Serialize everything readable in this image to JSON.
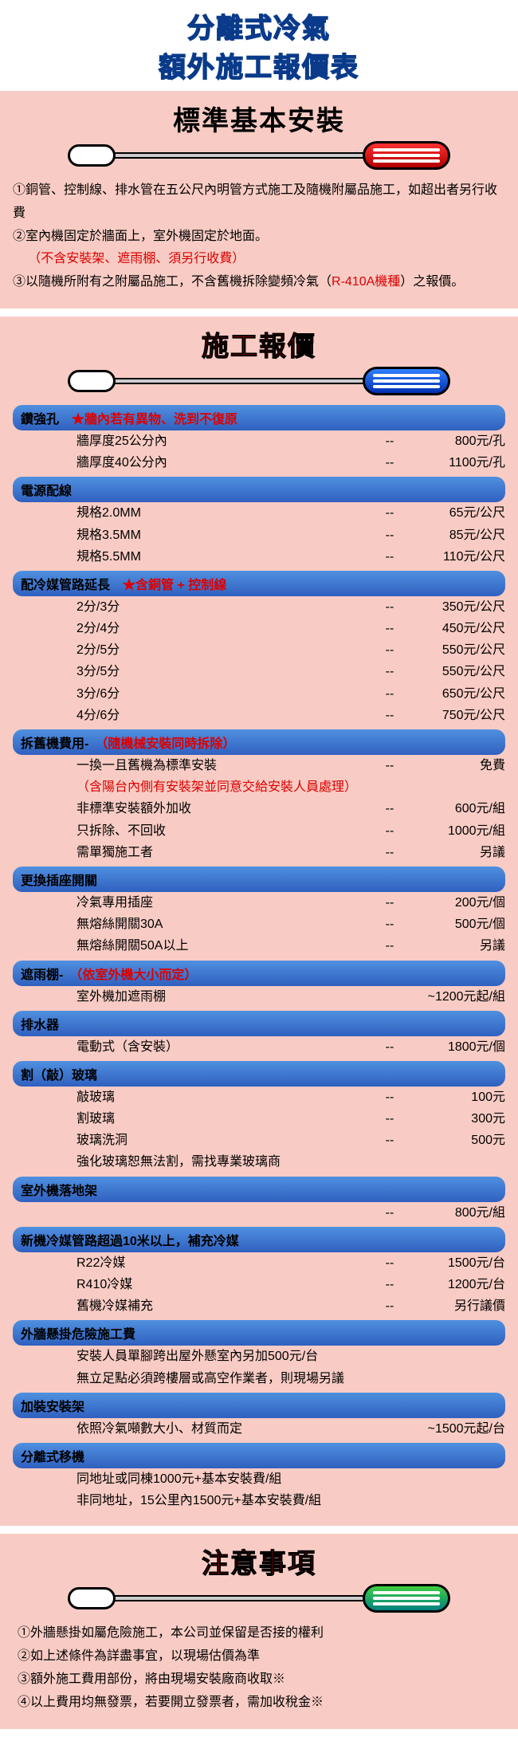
{
  "colors": {
    "section_bg": "#f8ccc4",
    "title_blue": "#0a3a8a",
    "red_text": "#d00000",
    "bar_bg_top": "#5090e0",
    "bar_bg_bottom": "#3060c0",
    "cap_red": "#d01010",
    "cap_blue": "#2050d0",
    "cap_green": "#10b080"
  },
  "main_title": {
    "line1": "分離式冷氣",
    "line2": "額外施工報價表"
  },
  "section1": {
    "title": "標準基本安裝",
    "notes": {
      "n1": "①銅管、控制線、排水管在五公尺內明管方式施工及隨機附屬品施工，如超出者另行收費",
      "n2a": "②室內機固定於牆面上，室外機固定於地面。",
      "n2b": "（不含安裝架、遮雨棚、須另行收費）",
      "n3a": "③以隨機所附有之附屬品施工，不含舊機拆除變頻冷氣（",
      "n3b": "R-410A機種",
      "n3c": "）之報價。"
    }
  },
  "section2": {
    "title": "施工報價",
    "categories": [
      {
        "header": "鑽強孔",
        "header_note": "★牆內若有異物、洗到不復原",
        "header_note_red": true,
        "rows": [
          {
            "desc": "牆厚度25公分內",
            "dash": "--",
            "price": "800元/孔"
          },
          {
            "desc": "牆厚度40公分內",
            "dash": "--",
            "price": "1100元/孔"
          }
        ]
      },
      {
        "header": "電源配線",
        "rows": [
          {
            "desc": "規格2.0MM",
            "dash": "--",
            "price": "65元/公尺"
          },
          {
            "desc": "規格3.5MM",
            "dash": "--",
            "price": "85元/公尺"
          },
          {
            "desc": "規格5.5MM",
            "dash": "--",
            "price": "110元/公尺"
          }
        ]
      },
      {
        "header": "配冷媒管路延長",
        "header_note": "★含銅管 + 控制線",
        "header_note_red": true,
        "rows": [
          {
            "desc": "2分/3分",
            "dash": "--",
            "price": "350元/公尺"
          },
          {
            "desc": "2分/4分",
            "dash": "--",
            "price": "450元/公尺"
          },
          {
            "desc": "2分/5分",
            "dash": "--",
            "price": "550元/公尺"
          },
          {
            "desc": "3分/5分",
            "dash": "--",
            "price": "550元/公尺"
          },
          {
            "desc": "3分/6分",
            "dash": "--",
            "price": "650元/公尺"
          },
          {
            "desc": "4分/6分",
            "dash": "--",
            "price": "750元/公尺"
          }
        ]
      },
      {
        "header": "拆舊機費用-",
        "header_note": "（隨機械安裝同時拆除）",
        "header_note_red": true,
        "rows": [
          {
            "desc": "一換一且舊機為標準安裝",
            "dash": "--",
            "price": "免費"
          }
        ],
        "mid_note": "（含陽台內側有安裝架並同意交給安裝人員處理）",
        "rows2": [
          {
            "desc": "非標準安裝額外加收",
            "dash": "--",
            "price": "600元/組"
          },
          {
            "desc": "只拆除、不回收",
            "dash": "--",
            "price": "1000元/組"
          },
          {
            "desc": "需單獨施工者",
            "dash": "--",
            "price": "另議"
          }
        ]
      },
      {
        "header": "更換插座開關",
        "rows": [
          {
            "desc": "冷氣專用插座",
            "dash": "--",
            "price": "200元/個"
          },
          {
            "desc": "無熔絲開關30A",
            "dash": "--",
            "price": "500元/個"
          },
          {
            "desc": "無熔絲開關50A以上",
            "dash": "--",
            "price": "另議"
          }
        ]
      },
      {
        "header": "遮雨棚-",
        "header_note": "（依室外機大小而定）",
        "header_note_red": true,
        "rows": [
          {
            "desc": "室外機加遮雨棚",
            "dash": "",
            "price": "~1200元起/組"
          }
        ]
      },
      {
        "header": "排水器",
        "rows": [
          {
            "desc": "電動式（含安裝）",
            "dash": "--",
            "price": "1800元/個"
          }
        ]
      },
      {
        "header": "割（敲）玻璃",
        "rows": [
          {
            "desc": "敲玻璃",
            "dash": "--",
            "price": "100元"
          },
          {
            "desc": "割玻璃",
            "dash": "--",
            "price": "300元"
          },
          {
            "desc": "玻璃洗洞",
            "dash": "--",
            "price": "500元"
          }
        ],
        "foot_note": "強化玻璃恕無法割，需找專業玻璃商"
      },
      {
        "header": "室外機落地架",
        "rows": [
          {
            "desc": "",
            "dash": "--",
            "price": "800元/組"
          }
        ]
      },
      {
        "header": "新機冷媒管路超過10米以上，補充冷媒",
        "rows": [
          {
            "desc": "R22冷媒",
            "dash": "--",
            "price": "1500元/台"
          },
          {
            "desc": "R410冷媒",
            "dash": "--",
            "price": "1200元/台"
          },
          {
            "desc": "舊機冷媒補充",
            "dash": "--",
            "price": "另行議價"
          }
        ]
      },
      {
        "header": "外牆懸掛危險施工費",
        "full_rows": [
          "安裝人員單腳跨出屋外懸室內另加500元/台",
          "無立足點必須跨樓層或高空作業者，則現場另議"
        ]
      },
      {
        "header": "加裝安裝架",
        "rows": [
          {
            "desc": "依照冷氣噸數大小、材質而定",
            "dash": "",
            "price": "~1500元起/台"
          }
        ]
      },
      {
        "header": "分離式移機",
        "full_rows": [
          "同地址或同棟1000元+基本安裝費/組",
          "非同地址，15公里內1500元+基本安裝費/組"
        ]
      }
    ]
  },
  "section3": {
    "title": "注意事項",
    "notes": [
      "①外牆懸掛如屬危險施工，本公司並保留是否接的權利",
      "②如上述條件為詳盡事宜，以現場估價為準",
      "③額外施工費用部份，將由現場安裝廠商收取※",
      "④以上費用均無發票，若要開立發票者，需加收稅金※"
    ]
  }
}
